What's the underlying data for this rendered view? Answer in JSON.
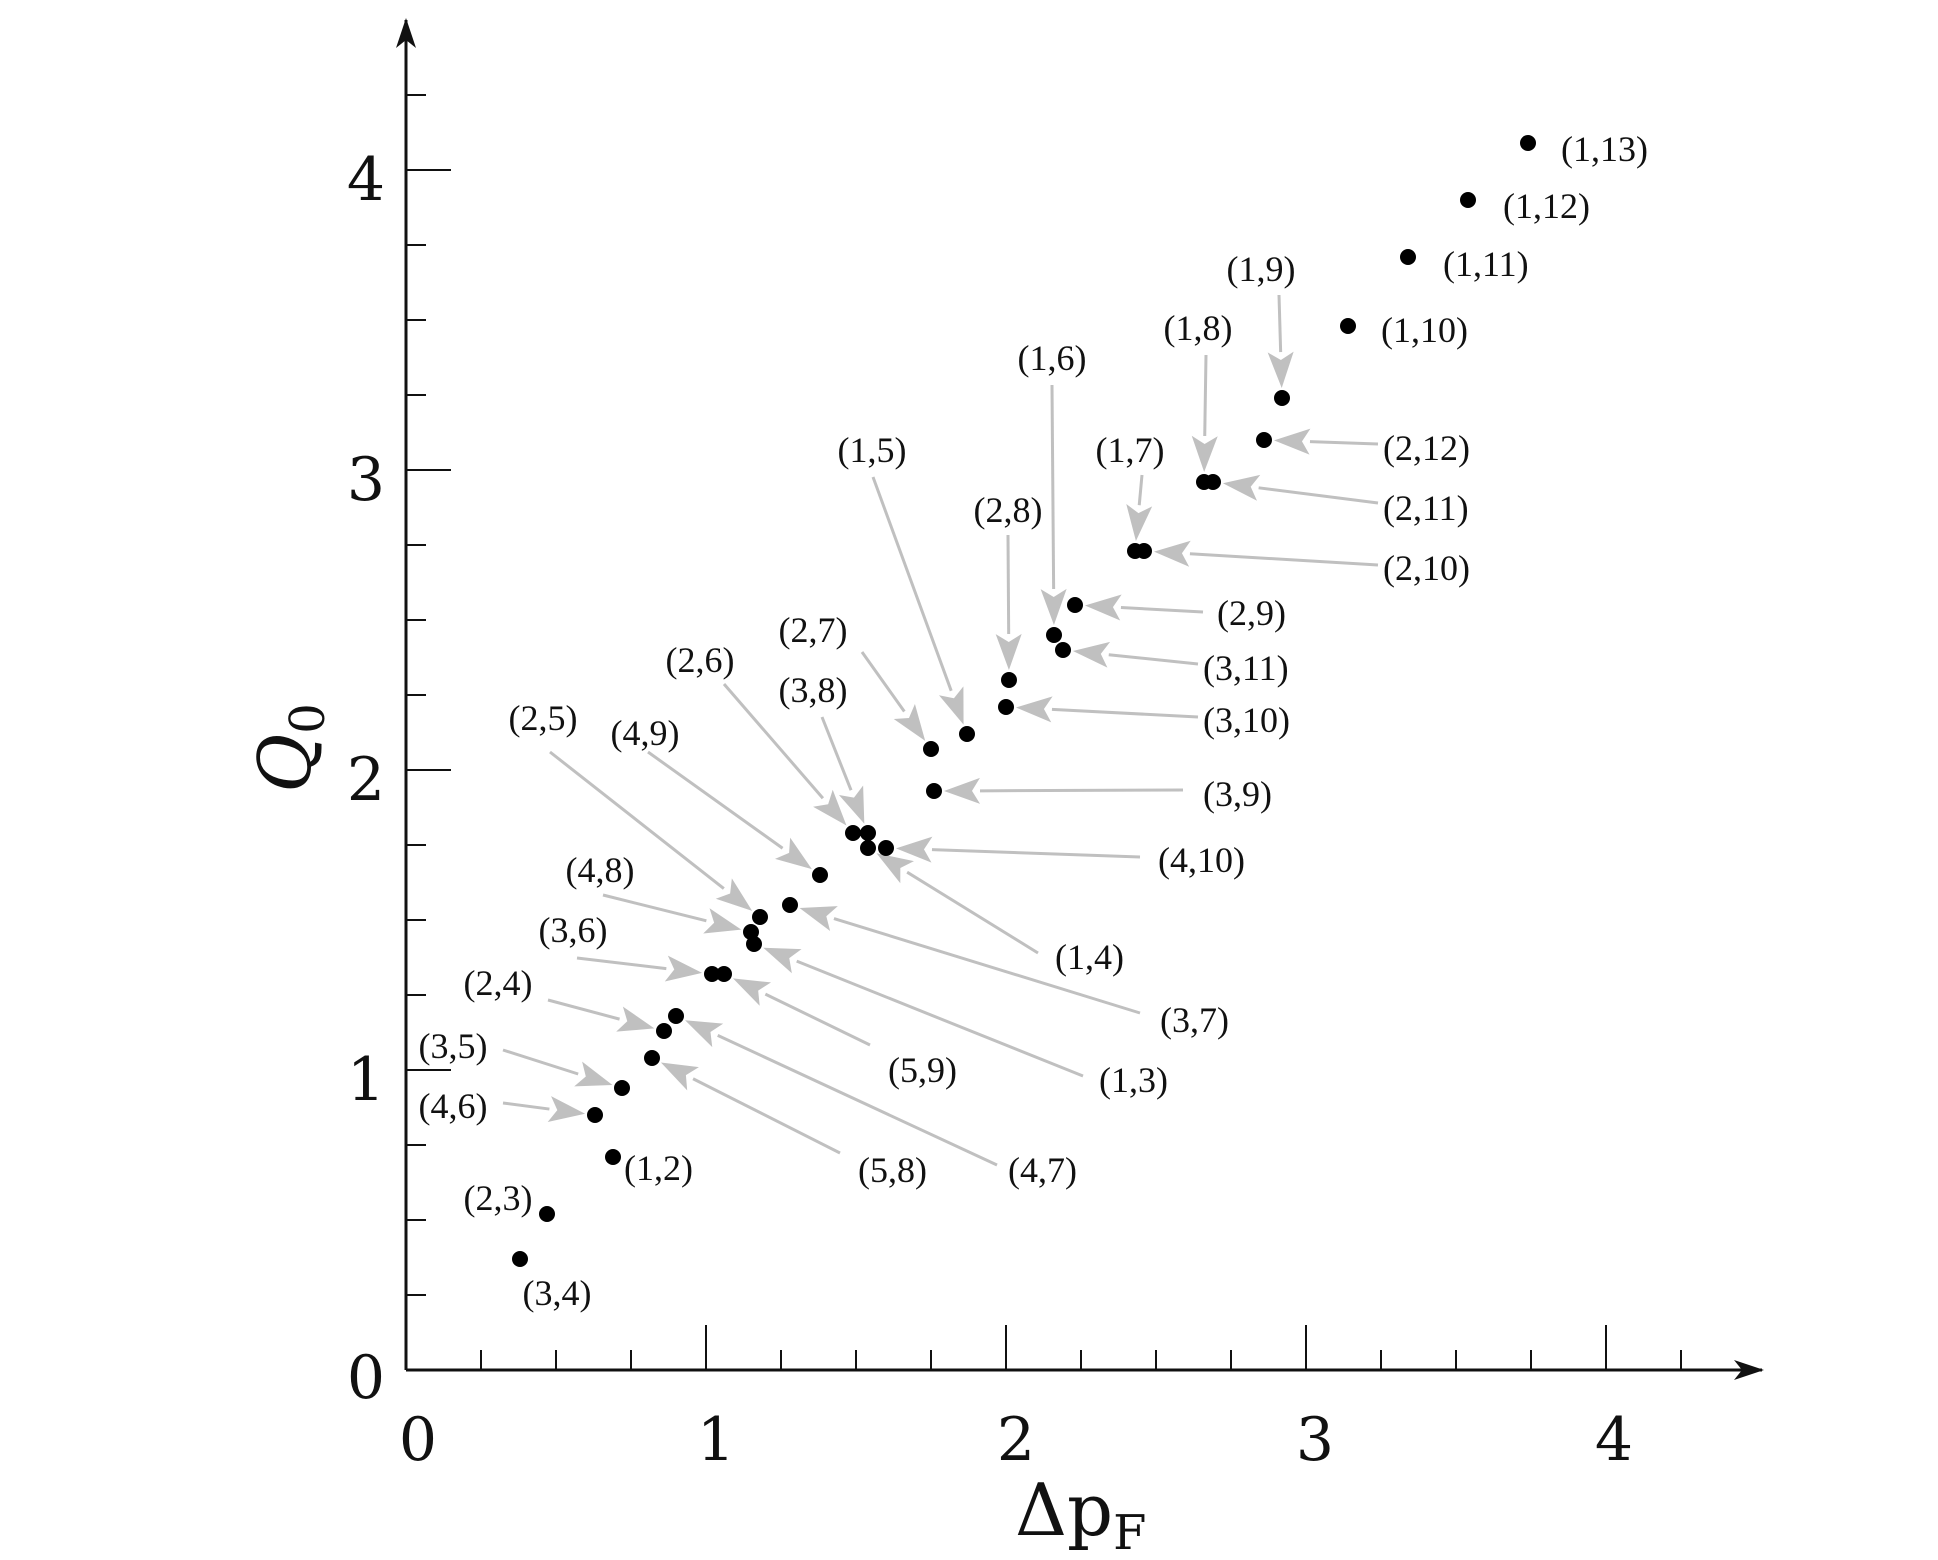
{
  "chart_data": {
    "type": "scatter",
    "xlabel": "Δp",
    "xlabel_sub": "F",
    "ylabel": "Q",
    "ylabel_sub": "0",
    "xlim": [
      0,
      4.3
    ],
    "ylim": [
      0,
      4.3
    ],
    "xticks": [
      "0",
      "1",
      "2",
      "3",
      "4"
    ],
    "yticks": [
      "0",
      "1",
      "2",
      "3",
      "4"
    ],
    "grid": false,
    "point_color": "#000000",
    "arrow_color": "#c0c0c0",
    "points": [
      {
        "label": "(1,13)",
        "x": 3.74,
        "y": 4.09,
        "arrow": false
      },
      {
        "label": "(1,12)",
        "x": 3.54,
        "y": 3.9,
        "arrow": false
      },
      {
        "label": "(1,11)",
        "x": 3.34,
        "y": 3.71,
        "arrow": false
      },
      {
        "label": "(1,10)",
        "x": 3.14,
        "y": 3.48,
        "arrow": false
      },
      {
        "label": "(1,9)",
        "x": 2.92,
        "y": 3.24,
        "arrow": true
      },
      {
        "label": "(2,12)",
        "x": 2.86,
        "y": 3.1,
        "arrow": true
      },
      {
        "label": "(1,8)",
        "x": 2.66,
        "y": 2.96,
        "arrow": true
      },
      {
        "label": "(2,11)",
        "x": 2.69,
        "y": 2.96,
        "arrow": true
      },
      {
        "label": "(1,7)",
        "x": 2.43,
        "y": 2.73,
        "arrow": true
      },
      {
        "label": "(2,10)",
        "x": 2.46,
        "y": 2.73,
        "arrow": true
      },
      {
        "label": "(2,9)",
        "x": 2.23,
        "y": 2.55,
        "arrow": true
      },
      {
        "label": "(1,6)",
        "x": 2.16,
        "y": 2.45,
        "arrow": true
      },
      {
        "label": "(3,11)",
        "x": 2.19,
        "y": 2.4,
        "arrow": true
      },
      {
        "label": "(2,8)",
        "x": 2.01,
        "y": 2.3,
        "arrow": true
      },
      {
        "label": "(3,10)",
        "x": 2.0,
        "y": 2.21,
        "arrow": true
      },
      {
        "label": "(1,5)",
        "x": 1.87,
        "y": 2.12,
        "arrow": true
      },
      {
        "label": "(2,7)",
        "x": 1.75,
        "y": 2.07,
        "arrow": true
      },
      {
        "label": "(3,9)",
        "x": 1.76,
        "y": 1.93,
        "arrow": true
      },
      {
        "label": "(2,6)",
        "x": 1.49,
        "y": 1.79,
        "arrow": true
      },
      {
        "label": "(3,8)",
        "x": 1.54,
        "y": 1.79,
        "arrow": true
      },
      {
        "label": "(1,4)",
        "x": 1.54,
        "y": 1.74,
        "arrow": true
      },
      {
        "label": "(4,10)",
        "x": 1.6,
        "y": 1.74,
        "arrow": true
      },
      {
        "label": "(4,9)",
        "x": 1.38,
        "y": 1.65,
        "arrow": true
      },
      {
        "label": "(3,7)",
        "x": 1.28,
        "y": 1.55,
        "arrow": true
      },
      {
        "label": "(2,5)",
        "x": 1.18,
        "y": 1.51,
        "arrow": true
      },
      {
        "label": "(4,8)",
        "x": 1.15,
        "y": 1.46,
        "arrow": true
      },
      {
        "label": "(1,3)",
        "x": 1.16,
        "y": 1.42,
        "arrow": true
      },
      {
        "label": "(3,6)",
        "x": 1.02,
        "y": 1.32,
        "arrow": true
      },
      {
        "label": "(5,9)",
        "x": 1.06,
        "y": 1.32,
        "arrow": true
      },
      {
        "label": "(4,7)",
        "x": 0.9,
        "y": 1.18,
        "arrow": true
      },
      {
        "label": "(2,4)",
        "x": 0.86,
        "y": 1.13,
        "arrow": true
      },
      {
        "label": "(5,8)",
        "x": 0.82,
        "y": 1.04,
        "arrow": true
      },
      {
        "label": "(3,5)",
        "x": 0.72,
        "y": 0.94,
        "arrow": true
      },
      {
        "label": "(4,6)",
        "x": 0.63,
        "y": 0.85,
        "arrow": true
      },
      {
        "label": "(1,2)",
        "x": 0.69,
        "y": 0.71,
        "arrow": false
      },
      {
        "label": "(2,3)",
        "x": 0.47,
        "y": 0.52,
        "arrow": false
      },
      {
        "label": "(3,4)",
        "x": 0.38,
        "y": 0.37,
        "arrow": false
      }
    ]
  }
}
